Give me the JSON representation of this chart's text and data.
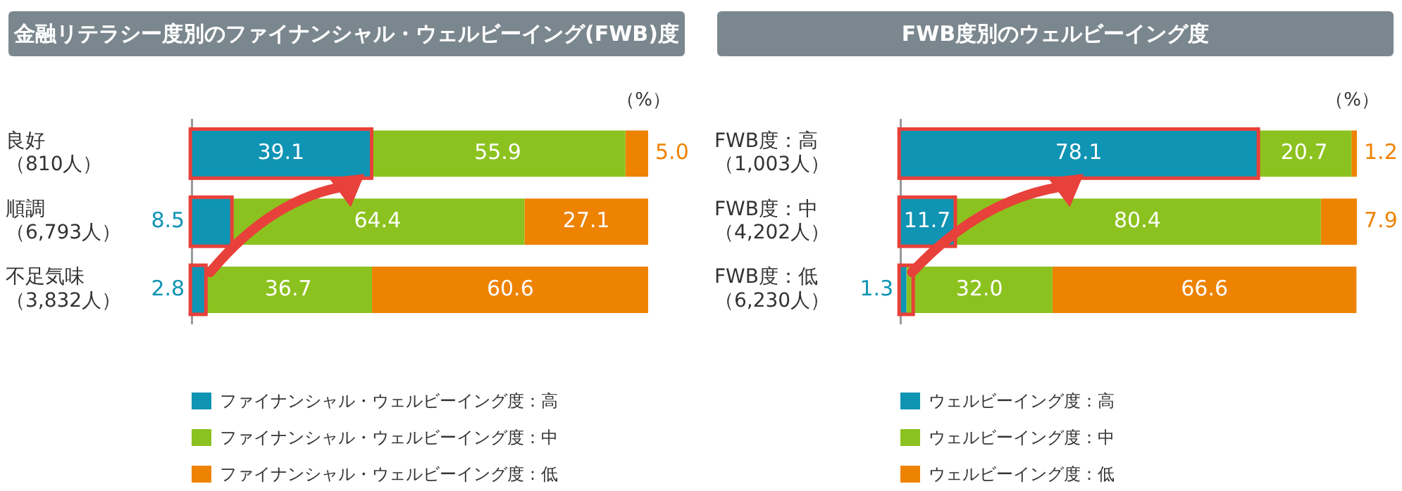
{
  "chart_data": [
    {
      "type": "bar",
      "orientation": "horizontal",
      "stacked": true,
      "title": "金融リテラシー度別のファイナンシャル・ウェルビーイング(FWB)度",
      "categories": [
        "良好（810人）",
        "順調（6,793人）",
        "不足気味（3,832人）"
      ],
      "series": [
        {
          "name": "ファイナンシャル・ウェルビーイング度：高",
          "color": "#0f94b4",
          "values": [
            39.1,
            8.5,
            2.8
          ],
          "value_labels": [
            "39.1",
            "8.5",
            "2.8"
          ]
        },
        {
          "name": "ファイナンシャル・ウェルビーイング度：中",
          "color": "#8cc21f",
          "values": [
            55.9,
            64.4,
            36.7
          ],
          "value_labels": [
            "55.9",
            "64.4",
            "36.7"
          ]
        },
        {
          "name": "ファイナンシャル・ウェルビーイング度：低",
          "color": "#ee8201",
          "values": [
            5.0,
            27.1,
            60.6
          ],
          "value_labels": [
            "5.0",
            "27.1",
            "60.6"
          ]
        }
      ],
      "xlim": [
        0,
        100
      ],
      "tick_labels": "y",
      "legend": "bottom left",
      "annotations": [
        "（%）"
      ]
    },
    {
      "type": "bar",
      "orientation": "horizontal",
      "stacked": true,
      "title": "FWB度別のウェルビーイング度",
      "categories": [
        "FWB度：高（1,003人）",
        "FWB度：中（4,202人）",
        "FWB度：低（6,230人）"
      ],
      "series": [
        {
          "name": "ウェルビーイング度：高",
          "color": "#0f94b4",
          "values": [
            78.1,
            11.7,
            1.3
          ],
          "value_labels": [
            "78.1",
            "11.7",
            "1.3"
          ]
        },
        {
          "name": "ウェルビーイング度：中",
          "color": "#8cc21f",
          "values": [
            20.7,
            80.4,
            32.0
          ],
          "value_labels": [
            "20.7",
            "80.4",
            "32.0"
          ]
        },
        {
          "name": "ウェルビーイング度：低",
          "color": "#ee8201",
          "values": [
            1.2,
            7.9,
            66.6
          ],
          "value_labels": [
            "1.2",
            "7.9",
            "66.6"
          ]
        }
      ],
      "xlim": [
        0,
        100
      ],
      "tick_labels": "y",
      "legend": "bottom left",
      "annotations": [
        "（%）"
      ]
    }
  ]
}
